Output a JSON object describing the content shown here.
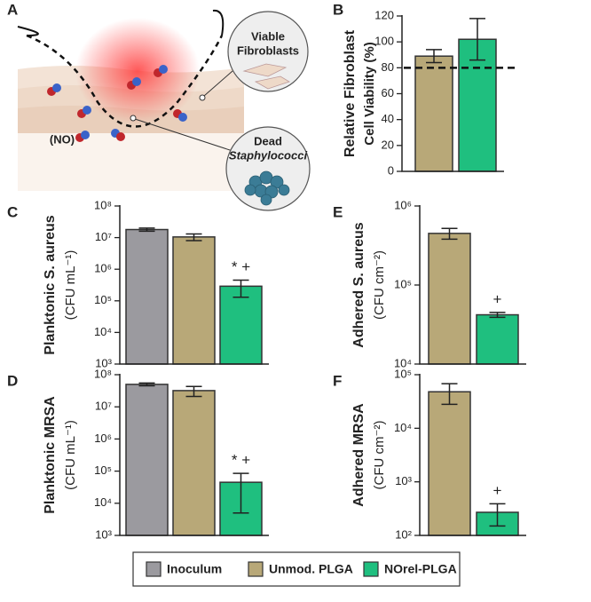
{
  "illustration": {
    "panel": "A",
    "no_label": "(NO)",
    "callouts": [
      {
        "lines": [
          "Viable",
          "Fibroblasts"
        ]
      },
      {
        "lines": [
          "Dead",
          "Staphylococci"
        ]
      }
    ]
  },
  "chart_data": [
    {
      "type": "bar",
      "panel": "B",
      "ylabel": [
        "Relative Fibroblast",
        "Cell Viability (%)"
      ],
      "categories": [
        null,
        null
      ],
      "values": [
        89,
        102
      ],
      "errors": [
        5,
        16
      ],
      "colors": [
        "#b8a878",
        "#1fbf7f"
      ],
      "ylim": [
        0,
        120
      ],
      "yticks": [
        0,
        20,
        40,
        60,
        80,
        100,
        120
      ],
      "reference_line": 80
    },
    {
      "type": "bar",
      "panel": "C",
      "ylabel": [
        "Planktonic S. aureus",
        "(CFU mL⁻¹)"
      ],
      "log_scale": true,
      "categories": [
        null,
        null,
        null
      ],
      "values": [
        18000000,
        10500000,
        290000
      ],
      "errors": [
        2000000,
        2500000,
        160000
      ],
      "colors": [
        "#9b9a9f",
        "#b8a878",
        "#1fbf7f"
      ],
      "value_annotations": [
        null,
        null,
        "* +"
      ],
      "ylim": [
        1000,
        100000000
      ],
      "yticks": [
        {
          "value": 1000,
          "label": "10³"
        },
        {
          "value": 10000,
          "label": "10⁴"
        },
        {
          "value": 100000,
          "label": "10⁵"
        },
        {
          "value": 1000000,
          "label": "10⁶"
        },
        {
          "value": 10000000,
          "label": "10⁷"
        },
        {
          "value": 100000000,
          "label": "10⁸"
        }
      ]
    },
    {
      "type": "bar",
      "panel": "D",
      "ylabel": [
        "Planktonic MRSA",
        "(CFU mL⁻¹)"
      ],
      "log_scale": true,
      "categories": [
        null,
        null,
        null
      ],
      "values": [
        50000000,
        32000000,
        45000
      ],
      "errors": [
        5000000,
        11000000,
        40000
      ],
      "colors": [
        "#9b9a9f",
        "#b8a878",
        "#1fbf7f"
      ],
      "value_annotations": [
        null,
        null,
        "* +"
      ],
      "ylim": [
        1000,
        100000000
      ],
      "yticks": [
        {
          "value": 1000,
          "label": "10³"
        },
        {
          "value": 10000,
          "label": "10⁴"
        },
        {
          "value": 100000,
          "label": "10⁵"
        },
        {
          "value": 1000000,
          "label": "10⁶"
        },
        {
          "value": 10000000,
          "label": "10⁷"
        },
        {
          "value": 100000000,
          "label": "10⁸"
        }
      ]
    },
    {
      "type": "bar",
      "panel": "E",
      "ylabel": [
        "Adhered S. aureus",
        "(CFU cm⁻²)"
      ],
      "log_scale": true,
      "categories": [
        null,
        null
      ],
      "values": [
        450000,
        42000
      ],
      "errors": [
        70000,
        3000
      ],
      "colors": [
        "#b8a878",
        "#1fbf7f"
      ],
      "value_annotations": [
        null,
        "+"
      ],
      "ylim": [
        10000,
        1000000
      ],
      "yticks": [
        {
          "value": 10000,
          "label": "10⁴"
        },
        {
          "value": 100000,
          "label": "10⁵"
        },
        {
          "value": 1000000,
          "label": "10⁶"
        }
      ]
    },
    {
      "type": "bar",
      "panel": "F",
      "ylabel": [
        "Adhered MRSA",
        "(CFU cm⁻²)"
      ],
      "log_scale": true,
      "categories": [
        null,
        null
      ],
      "values": [
        48000,
        270
      ],
      "errors": [
        20000,
        120
      ],
      "colors": [
        "#b8a878",
        "#1fbf7f"
      ],
      "value_annotations": [
        null,
        "+"
      ],
      "ylim": [
        100,
        100000
      ],
      "yticks": [
        {
          "value": 100,
          "label": "10²"
        },
        {
          "value": 1000,
          "label": "10³"
        },
        {
          "value": 10000,
          "label": "10⁴"
        },
        {
          "value": 100000,
          "label": "10⁵"
        }
      ]
    }
  ],
  "legend": {
    "items": [
      {
        "name": "Inoculum",
        "color": "#9b9a9f"
      },
      {
        "name": "Unmod. PLGA",
        "color": "#b8a878"
      },
      {
        "name": "NOrel-PLGA",
        "color": "#1fbf7f"
      }
    ]
  }
}
